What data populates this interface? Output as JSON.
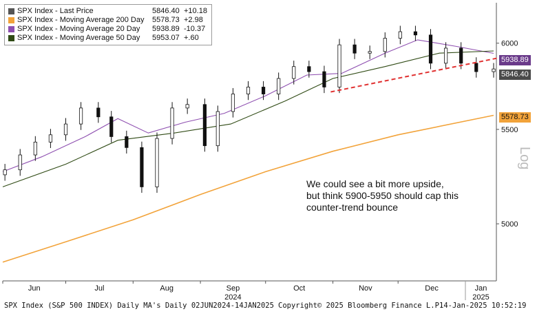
{
  "legend": [
    {
      "name": "SPX Index - Last Price",
      "value": "5846.40",
      "change": "+10.18",
      "color": "#555555"
    },
    {
      "name": "SPX Index - Moving Average 200 Day",
      "value": "5578.73",
      "change": "+2.98",
      "color": "#f2a33a"
    },
    {
      "name": "SPX Index - Moving Average 20 Day",
      "value": "5938.89",
      "change": "-10.37",
      "color": "#8e4fb0"
    },
    {
      "name": "SPX Index - Moving Average 50 Day",
      "value": "5953.07",
      "change": "+.60",
      "color": "#2f4a14"
    }
  ],
  "annotation": {
    "line1": "We could see a bit more upside,",
    "line2": "but think 5900-5950 should cap this",
    "line3": "counter-trend bounce"
  },
  "tags": {
    "ma20": "5938.89",
    "last": "5846.40",
    "ma200": "5578.73"
  },
  "footer": {
    "left": "SPX Index (S&P 500 INDEX) Daily MA's  Daily 02JUN2024-14JAN2025",
    "center": "Copyright© 2025 Bloomberg Finance L.P.",
    "right": "14-Jan-2025 10:52:19"
  },
  "chart_data": {
    "type": "line",
    "title": "",
    "y_axis_label": "Log",
    "y_scale": "log",
    "ylim": [
      4720,
      6250
    ],
    "y_ticks": [
      5000,
      5500,
      6000
    ],
    "x_ticks": [
      "Jun",
      "Jul",
      "Aug",
      "Sep",
      "Oct",
      "Nov",
      "Dec",
      "Jan"
    ],
    "x_year_labels": [
      {
        "label": "2024",
        "at": "Sep"
      },
      {
        "label": "2025",
        "at": "Jan"
      }
    ],
    "x_range": [
      "2024-06-02",
      "2025-01-14"
    ],
    "series": [
      {
        "name": "SPX Index - Last Price",
        "style": "candlestick",
        "color": "#555555",
        "x": [
          "2024-06-03",
          "2024-06-10",
          "2024-06-17",
          "2024-06-24",
          "2024-07-01",
          "2024-07-08",
          "2024-07-16",
          "2024-07-22",
          "2024-07-29",
          "2024-08-05",
          "2024-08-12",
          "2024-08-19",
          "2024-08-26",
          "2024-09-03",
          "2024-09-09",
          "2024-09-16",
          "2024-09-23",
          "2024-09-30",
          "2024-10-07",
          "2024-10-14",
          "2024-10-21",
          "2024-10-28",
          "2024-11-04",
          "2024-11-11",
          "2024-11-18",
          "2024-11-25",
          "2024-12-02",
          "2024-12-09",
          "2024-12-16",
          "2024-12-23",
          "2024-12-30",
          "2025-01-06",
          "2025-01-14"
        ],
        "values": [
          5280,
          5360,
          5430,
          5470,
          5530,
          5620,
          5570,
          5460,
          5400,
          5190,
          5450,
          5620,
          5640,
          5410,
          5600,
          5700,
          5740,
          5700,
          5790,
          5860,
          5830,
          5740,
          5990,
          5940,
          5950,
          6030,
          6070,
          6050,
          5880,
          5970,
          5880,
          5830,
          5846
        ]
      },
      {
        "name": "SPX Index - Moving Average 200 Day",
        "color": "#f2a33a",
        "x": [
          "2024-06-02",
          "2024-07-01",
          "2024-08-01",
          "2024-09-01",
          "2024-10-01",
          "2024-11-01",
          "2024-12-01",
          "2025-01-14"
        ],
        "values": [
          4810,
          4910,
          5020,
          5150,
          5270,
          5380,
          5470,
          5578.73
        ]
      },
      {
        "name": "SPX Index - Moving Average 20 Day",
        "color": "#8e4fb0",
        "x": [
          "2024-06-02",
          "2024-06-20",
          "2024-07-10",
          "2024-07-25",
          "2024-08-08",
          "2024-08-25",
          "2024-09-12",
          "2024-10-01",
          "2024-10-20",
          "2024-11-05",
          "2024-11-25",
          "2024-12-10",
          "2024-12-28",
          "2025-01-14"
        ],
        "values": [
          5270,
          5350,
          5460,
          5560,
          5480,
          5540,
          5590,
          5690,
          5810,
          5820,
          5940,
          6020,
          5980,
          5938.89
        ]
      },
      {
        "name": "SPX Index - Moving Average 50 Day",
        "color": "#2f4a14",
        "x": [
          "2024-06-02",
          "2024-07-01",
          "2024-07-25",
          "2024-08-20",
          "2024-09-15",
          "2024-10-10",
          "2024-11-01",
          "2024-11-25",
          "2024-12-20",
          "2025-01-14"
        ],
        "values": [
          5190,
          5310,
          5440,
          5480,
          5530,
          5660,
          5790,
          5860,
          5940,
          5953.07
        ]
      }
    ],
    "trendline": {
      "style": "dashed",
      "color": "#e03030",
      "x": [
        "2024-10-31",
        "2025-01-14"
      ],
      "values": [
        5712,
        5900
      ]
    }
  }
}
